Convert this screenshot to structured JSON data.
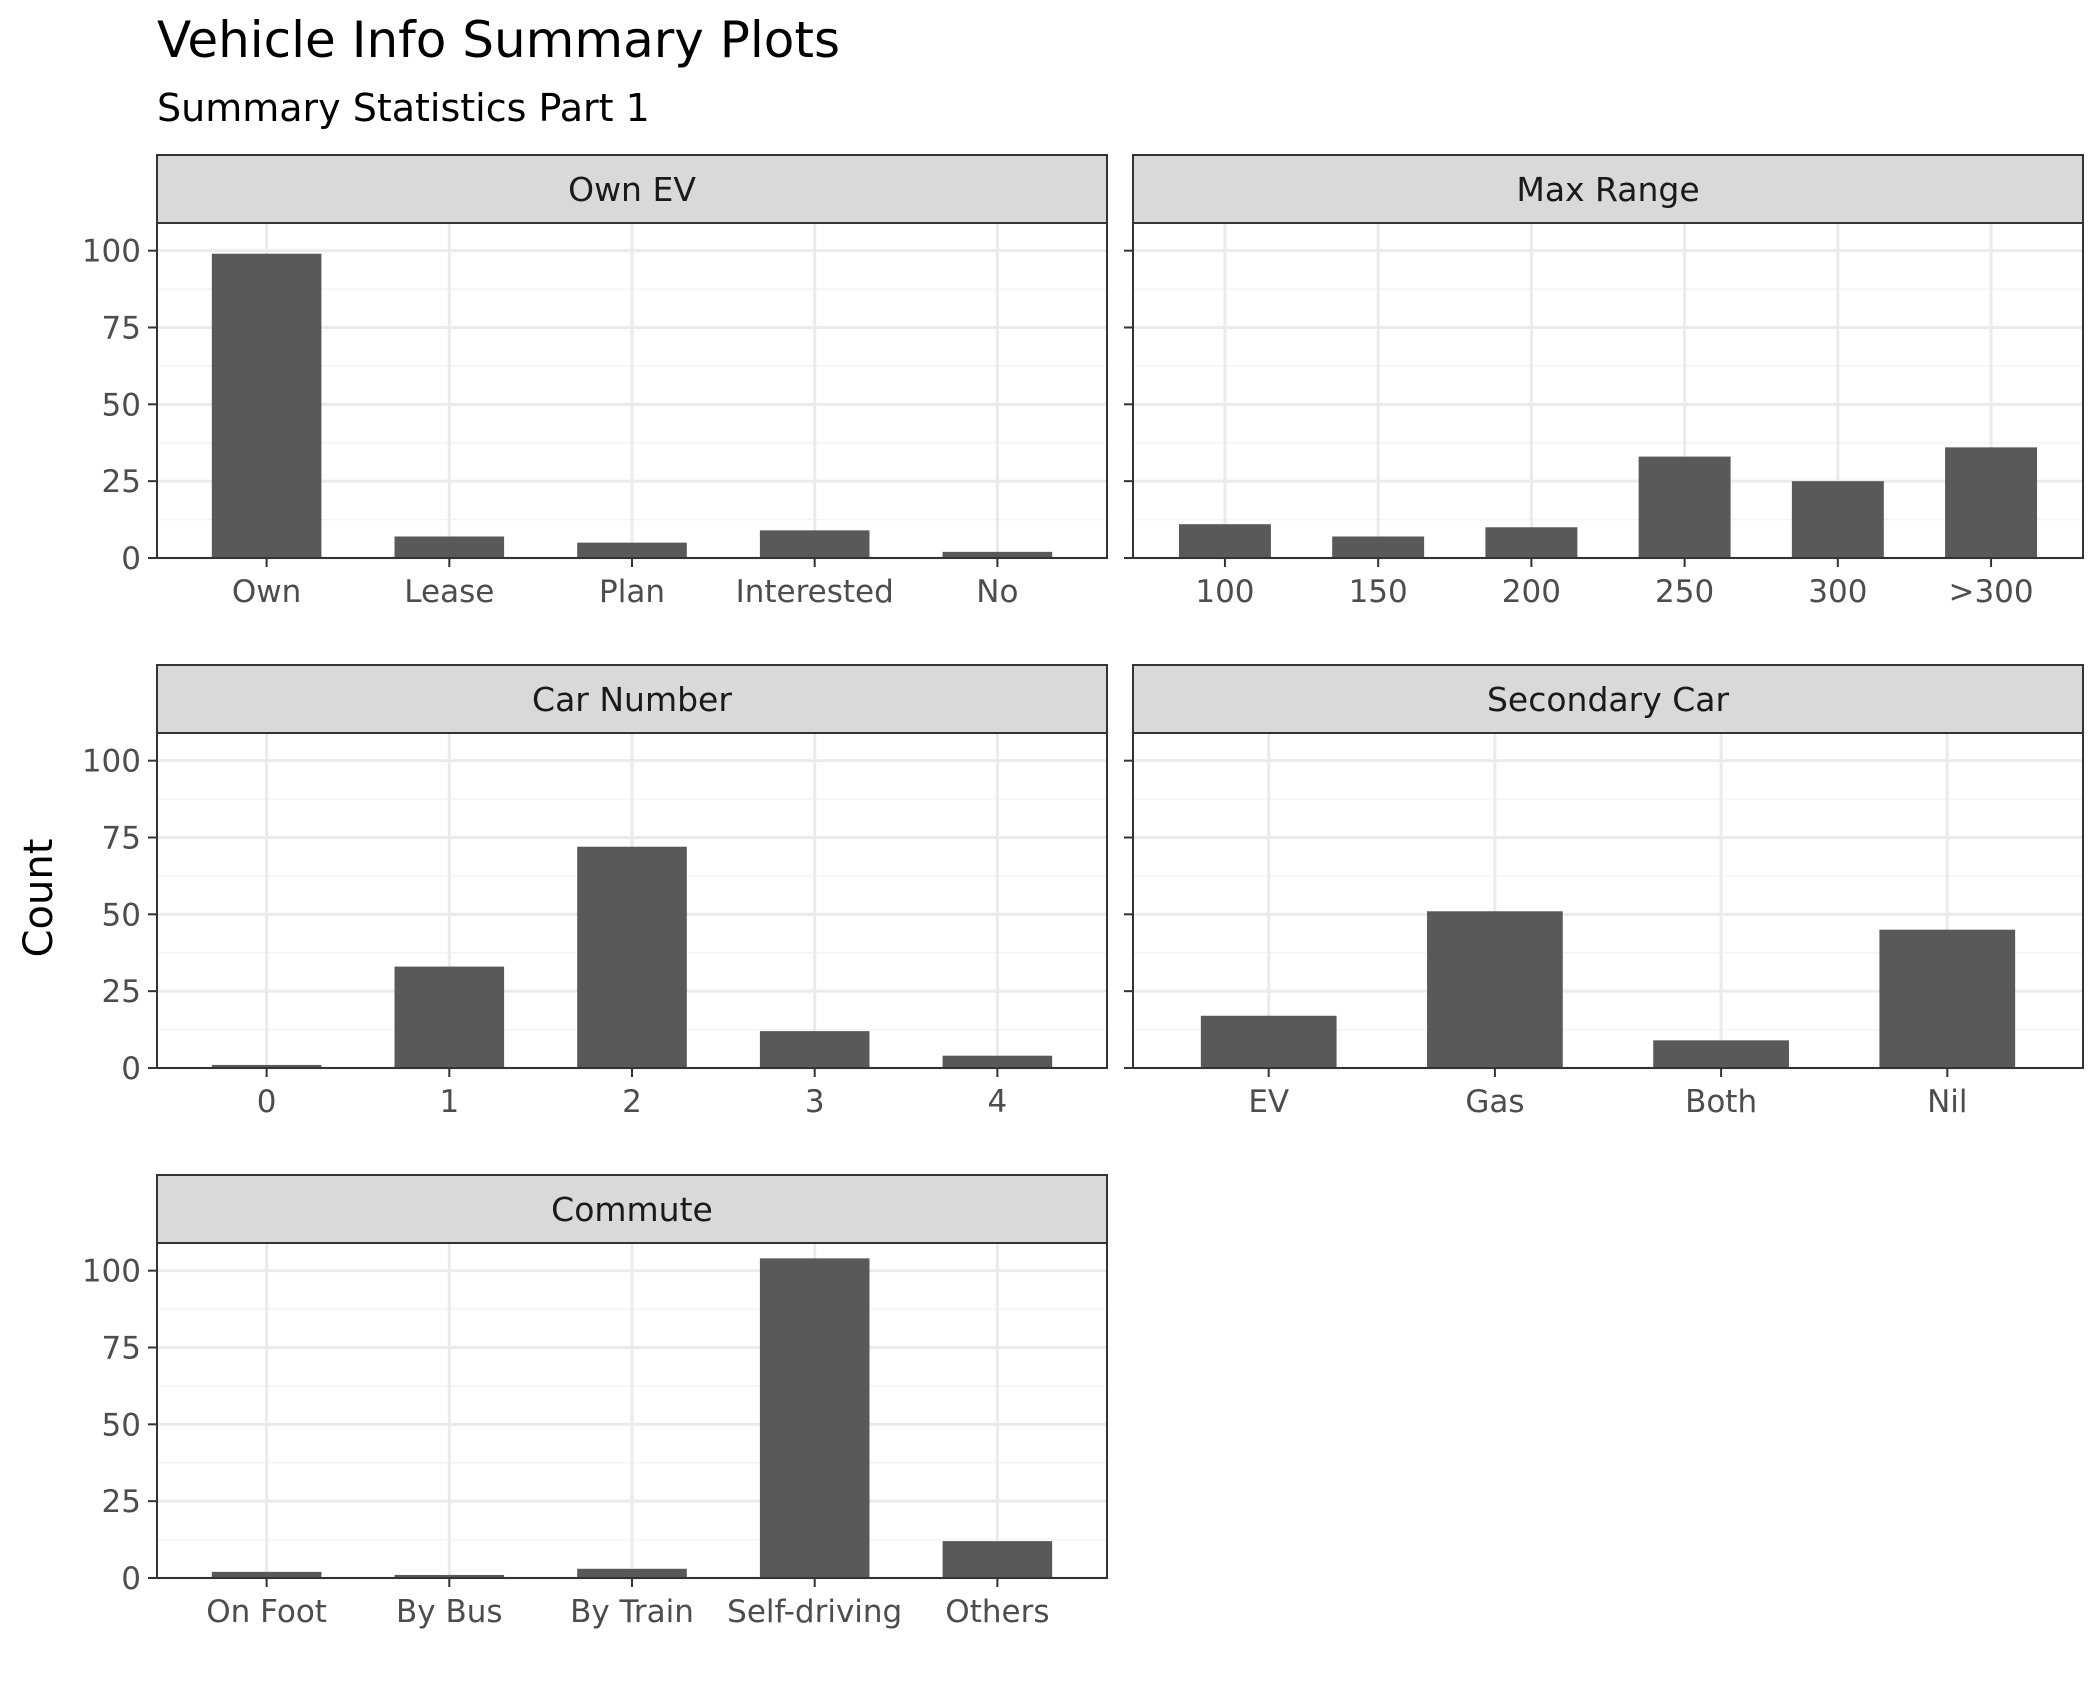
{
  "title": "Vehicle Info Summary Plots",
  "subtitle": "Summary Statistics Part 1",
  "ylabel": "Count",
  "colors": {
    "bar": "#595959",
    "strip": "#d9d9d9",
    "grid_major": "#ebebeb",
    "grid_minor": "#f4f4f4",
    "panel_border": "#333333",
    "tick_text": "#4d4d4d",
    "title_text": "#000000"
  },
  "chart_data": [
    {
      "type": "bar",
      "panel": "Own EV",
      "categories": [
        "Own",
        "Lease",
        "Plan",
        "Interested",
        "No"
      ],
      "values": [
        99,
        7,
        5,
        9,
        2
      ],
      "ylim": [
        0,
        109
      ],
      "yticks": [
        0,
        25,
        50,
        75,
        100
      ],
      "grid": true
    },
    {
      "type": "bar",
      "panel": "Max Range",
      "categories": [
        "100",
        "150",
        "200",
        "250",
        "300",
        ">300"
      ],
      "values": [
        11,
        7,
        10,
        33,
        25,
        36
      ],
      "ylim": [
        0,
        109
      ],
      "yticks": [
        0,
        25,
        50,
        75,
        100
      ],
      "grid": true
    },
    {
      "type": "bar",
      "panel": "Car Number",
      "categories": [
        "0",
        "1",
        "2",
        "3",
        "4"
      ],
      "values": [
        1,
        33,
        72,
        12,
        4
      ],
      "ylim": [
        0,
        109
      ],
      "yticks": [
        0,
        25,
        50,
        75,
        100
      ],
      "grid": true
    },
    {
      "type": "bar",
      "panel": "Secondary Car",
      "categories": [
        "EV",
        "Gas",
        "Both",
        "Nil"
      ],
      "values": [
        17,
        51,
        9,
        45
      ],
      "ylim": [
        0,
        109
      ],
      "yticks": [
        0,
        25,
        50,
        75,
        100
      ],
      "grid": true
    },
    {
      "type": "bar",
      "panel": "Commute",
      "categories": [
        "On Foot",
        "By Bus",
        "By Train",
        "Self-driving",
        "Others"
      ],
      "values": [
        2,
        1,
        3,
        104,
        12
      ],
      "ylim": [
        0,
        109
      ],
      "yticks": [
        0,
        25,
        50,
        75,
        100
      ],
      "grid": true
    }
  ]
}
